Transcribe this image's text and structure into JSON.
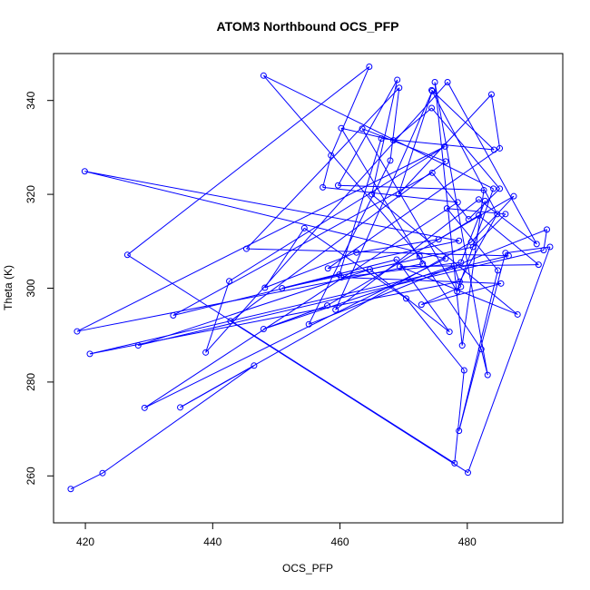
{
  "chart_data": {
    "type": "scatter",
    "title": "ATOM3 Northbound OCS_PFP",
    "xlabel": "OCS_PFP",
    "ylabel": "Theta (K)",
    "xlim": [
      415,
      495
    ],
    "ylim": [
      250,
      350
    ],
    "xticks": [
      420,
      440,
      460,
      480
    ],
    "yticks": [
      260,
      280,
      300,
      320,
      340
    ],
    "grid": false,
    "legend": "none",
    "connect_points": true,
    "series_color": "#0000ff",
    "x": [
      417.7,
      422.7,
      446.5,
      434.9,
      480.6,
      487.3,
      475.5,
      462.6,
      448.2,
      454.4,
      470.4,
      479.5,
      478.0,
      426.6,
      464.6,
      458.6,
      457.3,
      478.5,
      429.3,
      476.6,
      419.9,
      478.7,
      458.1,
      485.1,
      483.8,
      469.2,
      474.5,
      459.3,
      481.8,
      490.9,
      476.9,
      438.9,
      442.6,
      476.5,
      418.7,
      473.0,
      460.2,
      468.4,
      474.4,
      485.1,
      480.2,
      474.5,
      433.8,
      459.9,
      466.5,
      484.2,
      474.4,
      484.7,
      478.8,
      420.7,
      486.5,
      445.3,
      469.3,
      467.9,
      455.1,
      492.5,
      492.0,
      428.3,
      464.7,
      477.2,
      468.9,
      450.9,
      480.9,
      486.0,
      476.8,
      484.8,
      478.7,
      486.0,
      493.0,
      480.1,
      442.8,
      476.6,
      463.5,
      478.4,
      484.1,
      448.0,
      472.5,
      482.2,
      483.2,
      474.9,
      479.2,
      482.6,
      459.7,
      469.0,
      465.0,
      487.9,
      469.4,
      491.2,
      481.8,
      458.0,
      448.0,
      477.9,
      479.0,
      472.8,
      485.3,
      460.2,
      479.0,
      482.8
    ],
    "y": [
      257.2,
      260.6,
      283.5,
      274.6,
      309.8,
      319.6,
      310.4,
      307.6,
      300.1,
      312.8,
      297.8,
      282.5,
      262.7,
      307.1,
      347.2,
      328.3,
      321.5,
      318.3,
      274.5,
      306.3,
      324.9,
      310.1,
      304.2,
      329.8,
      341.3,
      320.0,
      342.0,
      295.4,
      318.9,
      309.4,
      343.9,
      286.3,
      301.5,
      330.2,
      290.8,
      305.2,
      334.1,
      331.5,
      338.4,
      321.2,
      314.7,
      324.6,
      294.2,
      302.9,
      331.9,
      329.5,
      342.2,
      315.8,
      301.4,
      286.0,
      306.9,
      308.4,
      342.7,
      327.2,
      292.3,
      312.5,
      308.1,
      287.8,
      304.0,
      290.7,
      306.1,
      300.0,
      308.8,
      315.8,
      317.0,
      303.8,
      269.6,
      307.5,
      308.8,
      260.7,
      293.0,
      327.0,
      334.0,
      299.3,
      321.2,
      345.3,
      306.8,
      287.0,
      281.5,
      343.9,
      287.8,
      320.9,
      321.9,
      344.4,
      320.0,
      294.4,
      304.6,
      305.0,
      315.5,
      296.3,
      291.3,
      304.8,
      300.3,
      296.5,
      301.0,
      302.3,
      305.5,
      318.6
    ]
  }
}
